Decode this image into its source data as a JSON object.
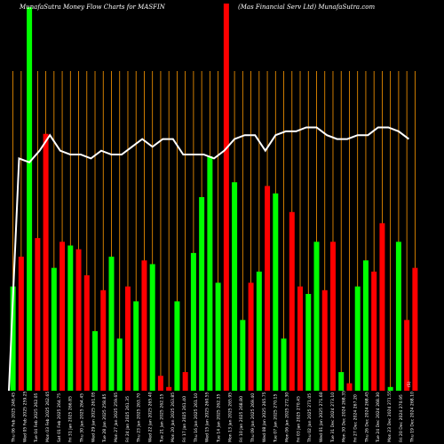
{
  "chart_data": {
    "type": "bar",
    "title_left": "MunafaSutra  Money Flow  Charts for MASFIN",
    "title_right": "(Mas Financial Serv   Ltd) MunafaSutra.com",
    "colors": {
      "background": "#000000",
      "up": "#00ff00",
      "down": "#ff0000",
      "grid": "#ff9900",
      "line": "#ffffff"
    },
    "axis_label": "",
    "x_tick_labels": [
      "Thu 06 Feb 2025 248.45",
      "Wed 05 Feb 2025 259.25",
      "Tue 04 Feb 2025 262.05",
      "Mon 03 Feb 2025 262.65",
      "Sat 01 Feb 2025 264.75",
      "Fri 31 Jan 2025 266.85",
      "Thu 30 Jan 2025 264.45",
      "Wed 29 Jan 2025 261.05",
      "Tue 28 Jan 2025 258.85",
      "Mon 27 Jan 2025 259.65",
      "Fri 24 Jan 2025 261.35",
      "Thu 23 Jan 2025 263.70",
      "Wed 22 Jan 2025 265.40",
      "Tue 21 Jan 2025 262.15",
      "Mon 20 Jan 2025 263.85",
      "Fri 17 Jan 2025 261.40",
      "Thu 16 Jan 2025 261.10",
      "Wed 15 Jan 2025 260.55",
      "Tue 14 Jan 2025 262.35",
      "Mon 13 Jan 2025 265.95",
      "Fri 10 Jan 2025 268.80",
      "Thu 09 Jan 2025 269.40",
      "Wed 08 Jan 2025 265.75",
      "Tue 07 Jan 2025 270.15",
      "Mon 06 Jan 2025 272.30",
      "Fri 03 Jan 2025 270.45",
      "Thu 02 Jan 2025 271.05",
      "Wed 01 Jan 2025 271.60",
      "Tue 31 Dec 2024 273.10",
      "Mon 30 Dec 2024 268.35",
      "Fri 27 Dec 2024 267.20",
      "Thu 26 Dec 2024 268.45",
      "Tue 24 Dec 2024 268.30",
      "Mon 23 Dec 2024 271.55",
      "Fri 20 Dec 2024 270.95",
      "Thu 19 Dec 2024 268.10"
    ],
    "last_tick_extra": "(S)",
    "bar_colors": [
      "green",
      "red",
      "green",
      "red",
      "red",
      "green",
      "red",
      "green",
      "red",
      "red",
      "green",
      "red",
      "green",
      "green",
      "red",
      "green",
      "red",
      "green",
      "red",
      "red",
      "green",
      "red",
      "green",
      "green",
      "green",
      "green",
      "red",
      "green",
      "green",
      "red",
      "green",
      "red",
      "green",
      "green",
      "red",
      "red",
      "green",
      "green",
      "red",
      "red",
      "green",
      "red",
      "green",
      "green",
      "red",
      "red",
      "green",
      "green",
      "red",
      "red"
    ],
    "bar_values": [
      28,
      36,
      103,
      41,
      69,
      33,
      40,
      39,
      38,
      31,
      16,
      27,
      36,
      14,
      28,
      24,
      35,
      34,
      4,
      1,
      24,
      5,
      37,
      52,
      63,
      29,
      104,
      56,
      19,
      29,
      32,
      55,
      53,
      14,
      48,
      28,
      26,
      40,
      27,
      40,
      5,
      2,
      28,
      35,
      32,
      45,
      1,
      40,
      19,
      33
    ],
    "price_line": [
      0,
      60,
      59,
      62,
      66,
      62,
      61,
      61,
      60,
      62,
      61,
      61,
      63,
      65,
      63,
      65,
      65,
      61,
      61,
      61,
      60,
      62,
      65,
      66,
      66,
      62,
      66,
      67,
      67,
      68,
      68,
      66,
      65,
      65,
      66,
      66,
      68,
      68,
      67,
      65
    ],
    "y_range": [
      0,
      104
    ]
  }
}
